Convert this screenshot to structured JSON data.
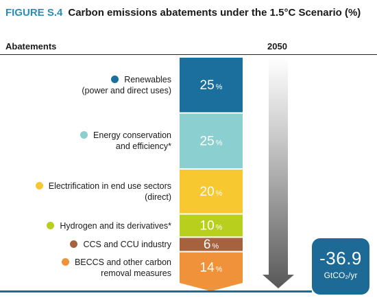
{
  "figure": {
    "label": "FIGURE S.4",
    "title": "Carbon emissions abatements under the 1.5°C Scenario (%)"
  },
  "columns": {
    "left": "Abatements",
    "right": "2050"
  },
  "chart_data": {
    "type": "bar",
    "stacked": true,
    "title": "Carbon emissions abatements under the 1.5°C Scenario (%)",
    "column": "2050",
    "unit_suffix": "%",
    "segments": [
      {
        "label_lines": [
          "Renewables",
          "(power and direct uses)"
        ],
        "value": 25,
        "color": "#1b6f9c"
      },
      {
        "label_lines": [
          "Energy conservation",
          "and efficiency*"
        ],
        "value": 25,
        "color": "#8ccfd1"
      },
      {
        "label_lines": [
          "Electrification in end use sectors",
          "(direct)"
        ],
        "value": 20,
        "color": "#f7c830"
      },
      {
        "label_lines": [
          "Hydrogen and its derivatives*"
        ],
        "value": 10,
        "color": "#b8cf1e"
      },
      {
        "label_lines": [
          "CCS and CCU industry"
        ],
        "value": 6,
        "color": "#a5623c"
      },
      {
        "label_lines": [
          "BECCS and other carbon",
          "removal measures"
        ],
        "value": 14,
        "color": "#ef923a"
      }
    ],
    "total": {
      "value": "-36.9",
      "unit": "GtCO₂/yr"
    }
  }
}
